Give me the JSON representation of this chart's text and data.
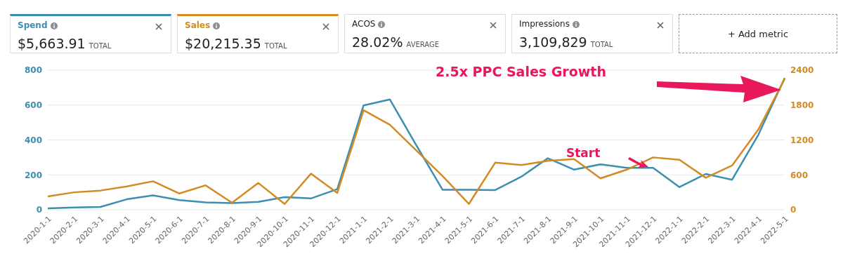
{
  "chart_data": {
    "type": "line",
    "categories": [
      "2020-1-1",
      "2020-2-1",
      "2020-3-1",
      "2020-4-1",
      "2020-5-1",
      "2020-6-1",
      "2020-7-1",
      "2020-8-1",
      "2020-9-1",
      "2020-10-1",
      "2020-11-1",
      "2020-12-1",
      "2021-1-1",
      "2021-2-1",
      "2021-3-1",
      "2021-4-1",
      "2021-5-1",
      "2021-6-1",
      "2021-7-1",
      "2021-8-1",
      "2021-9-1",
      "2021-10-1",
      "2021-11-1",
      "2021-12-1",
      "2022-1-1",
      "2022-2-1",
      "2022-3-1",
      "2022-4-1",
      "2022-5-1"
    ],
    "series": [
      {
        "name": "Spend",
        "color": "#3b8fb1",
        "values": [
          8,
          13,
          16,
          60,
          82,
          55,
          42,
          38,
          45,
          72,
          65,
          118,
          598,
          632,
          370,
          115,
          115,
          113,
          190,
          295,
          230,
          260,
          240,
          240,
          130,
          205,
          172,
          430,
          755
        ]
      },
      {
        "name": "Sales",
        "color": "#d48a22",
        "axis": "y2",
        "values": [
          230,
          300,
          330,
          400,
          490,
          280,
          420,
          120,
          460,
          100,
          620,
          290,
          1710,
          1460,
          1020,
          580,
          100,
          810,
          770,
          840,
          870,
          540,
          690,
          900,
          860,
          550,
          760,
          1380,
          2250
        ]
      }
    ],
    "ylim": [
      0,
      800
    ],
    "yticks": [
      0,
      200,
      400,
      600,
      800
    ],
    "y2lim": [
      0,
      2400
    ],
    "y2ticks": [
      0,
      600,
      1200,
      1800,
      2400
    ],
    "grid": "y",
    "legend": "top",
    "marker": "none",
    "line_style": "solid",
    "annotations": [
      "$5,663.91",
      "TOTAL",
      "$20,215.35",
      "TOTAL",
      "ACOS",
      "28.02%",
      "AVERAGE",
      "Impressions",
      "3,109,829",
      "TOTAL",
      "+ Add metric",
      "2.5x PPC Sales Growth",
      "Start"
    ]
  }
}
